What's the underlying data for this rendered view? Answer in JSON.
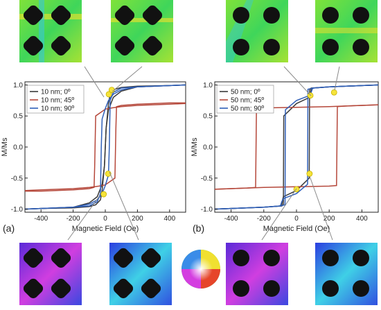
{
  "chart_data": [
    {
      "id": "a",
      "type": "line",
      "panel_label": "(a)",
      "xlabel": "Magnetic Field (Oe)",
      "ylabel": "M/Ms",
      "xlim": [
        -500,
        500
      ],
      "ylim": [
        -1.05,
        1.05
      ],
      "xticks": [
        -400,
        -200,
        0,
        200,
        400
      ],
      "yticks": [
        -1.0,
        -0.5,
        0.0,
        0.5,
        1.0
      ],
      "xtick_labels": [
        "-400",
        "-200",
        "0",
        "200",
        "400"
      ],
      "ytick_labels": [
        "-1.0",
        "-0.5",
        "0.0",
        "0.5",
        "1.0"
      ],
      "legend_position": "top-left",
      "series": [
        {
          "name": "10 nm; 0º",
          "color": "#3a3a3a",
          "x": [
            -500,
            -400,
            -200,
            -100,
            -50,
            -20,
            -5,
            0,
            5,
            20,
            30,
            60,
            100,
            200,
            400,
            500
          ],
          "y": [
            -1.0,
            -0.99,
            -0.97,
            -0.9,
            -0.8,
            -0.6,
            -0.3,
            0.0,
            0.3,
            0.7,
            0.85,
            0.93,
            0.96,
            0.98,
            0.99,
            1.0
          ]
        },
        {
          "name": "10 nm; 45º",
          "color": "#b5473a",
          "x": [
            -500,
            -400,
            -200,
            -100,
            -70,
            -66,
            -60,
            0,
            40,
            100,
            200,
            300,
            400,
            500
          ],
          "y": [
            -0.71,
            -0.71,
            -0.69,
            -0.67,
            -0.65,
            -0.3,
            0.5,
            0.61,
            0.63,
            0.65,
            0.67,
            0.68,
            0.69,
            0.7
          ]
        },
        {
          "name": "10 nm; 90º",
          "color": "#2f5fb8",
          "x": [
            -500,
            -400,
            -200,
            -100,
            -50,
            -20,
            0,
            20,
            25,
            30,
            50,
            100,
            200,
            400,
            500
          ],
          "y": [
            -1.0,
            -0.99,
            -0.97,
            -0.92,
            -0.85,
            -0.75,
            -0.62,
            -0.45,
            0.0,
            0.75,
            0.88,
            0.95,
            0.97,
            0.99,
            1.0
          ]
        }
      ],
      "markers": [
        {
          "x": 22,
          "y": 0.85
        },
        {
          "x": 40,
          "y": 0.92
        },
        {
          "x": 18,
          "y": -0.43
        },
        {
          "x": -10,
          "y": -0.76
        }
      ]
    },
    {
      "id": "b",
      "type": "line",
      "panel_label": "(b)",
      "xlabel": "Magnetic Field (Oe)",
      "ylabel": "M/Ms",
      "xlim": [
        -500,
        500
      ],
      "ylim": [
        -1.05,
        1.05
      ],
      "xticks": [
        -400,
        -200,
        0,
        200,
        400
      ],
      "yticks": [
        -1.0,
        -0.5,
        0.0,
        0.5,
        1.0
      ],
      "xtick_labels": [
        "-400",
        "-200",
        "0",
        "200",
        "400"
      ],
      "ytick_labels": [
        "-1.0",
        "-0.5",
        "0.0",
        "0.5",
        "1.0"
      ],
      "legend_position": "top-left",
      "series": [
        {
          "name": "50 nm; 0º",
          "color": "#3a3a3a",
          "x": [
            -500,
            -400,
            -200,
            -100,
            -80,
            -78,
            0,
            80,
            85,
            88,
            90,
            200,
            400,
            500
          ],
          "y": [
            -1.0,
            -0.99,
            -0.97,
            -0.95,
            -0.93,
            0.5,
            0.7,
            0.8,
            0.85,
            0.9,
            0.95,
            0.97,
            0.99,
            1.0
          ]
        },
        {
          "name": "50 nm; 45º",
          "color": "#b5473a",
          "x": [
            -500,
            -400,
            -300,
            -250,
            -245,
            -200,
            0,
            200,
            300,
            400,
            500
          ],
          "y": [
            -0.68,
            -0.67,
            -0.66,
            -0.65,
            0.62,
            0.63,
            0.64,
            0.65,
            0.66,
            0.67,
            0.68
          ]
        },
        {
          "name": "50 nm; 90º",
          "color": "#2f5fb8",
          "x": [
            -500,
            -400,
            -200,
            -100,
            -70,
            -68,
            0,
            80,
            90,
            95,
            100,
            200,
            400,
            500
          ],
          "y": [
            -1.0,
            -0.99,
            -0.97,
            -0.95,
            -0.93,
            0.6,
            0.75,
            0.83,
            0.88,
            0.92,
            0.95,
            0.97,
            0.99,
            1.0
          ]
        }
      ],
      "markers": [
        {
          "x": 85,
          "y": 0.83
        },
        {
          "x": 230,
          "y": 0.88
        },
        {
          "x": 80,
          "y": -0.43
        },
        {
          "x": 0,
          "y": -0.68
        }
      ]
    }
  ]
}
